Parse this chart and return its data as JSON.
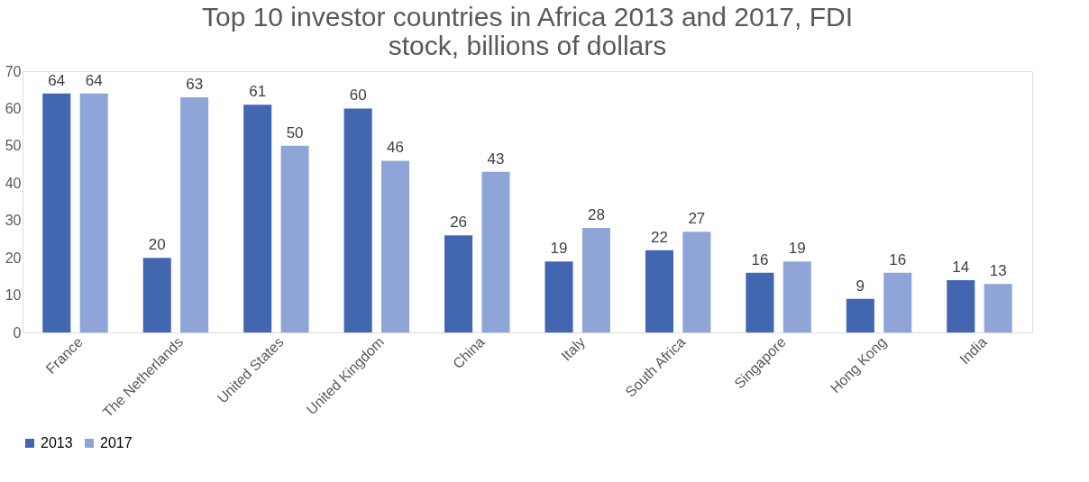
{
  "chart_data": {
    "type": "bar",
    "title": "Top 10 investor countries in Africa 2013 and 2017, FDI stock, billions of dollars",
    "categories": [
      "France",
      "The Netherlands",
      "United States",
      "United Kingdom",
      "China",
      "Italy",
      "South Africa",
      "Singapore",
      "Hong Kong",
      "India"
    ],
    "series": [
      {
        "name": "2013",
        "color": "#4266b0",
        "values": [
          64,
          20,
          61,
          60,
          26,
          19,
          22,
          16,
          9,
          14
        ]
      },
      {
        "name": "2017",
        "color": "#8fa5d7",
        "values": [
          64,
          63,
          50,
          46,
          43,
          28,
          27,
          19,
          16,
          13
        ]
      }
    ],
    "ylim": [
      0,
      70
    ],
    "yticks": [
      0,
      10,
      20,
      30,
      40,
      50,
      60,
      70
    ],
    "grid": false,
    "legend": "bottom",
    "data_labels": true
  }
}
